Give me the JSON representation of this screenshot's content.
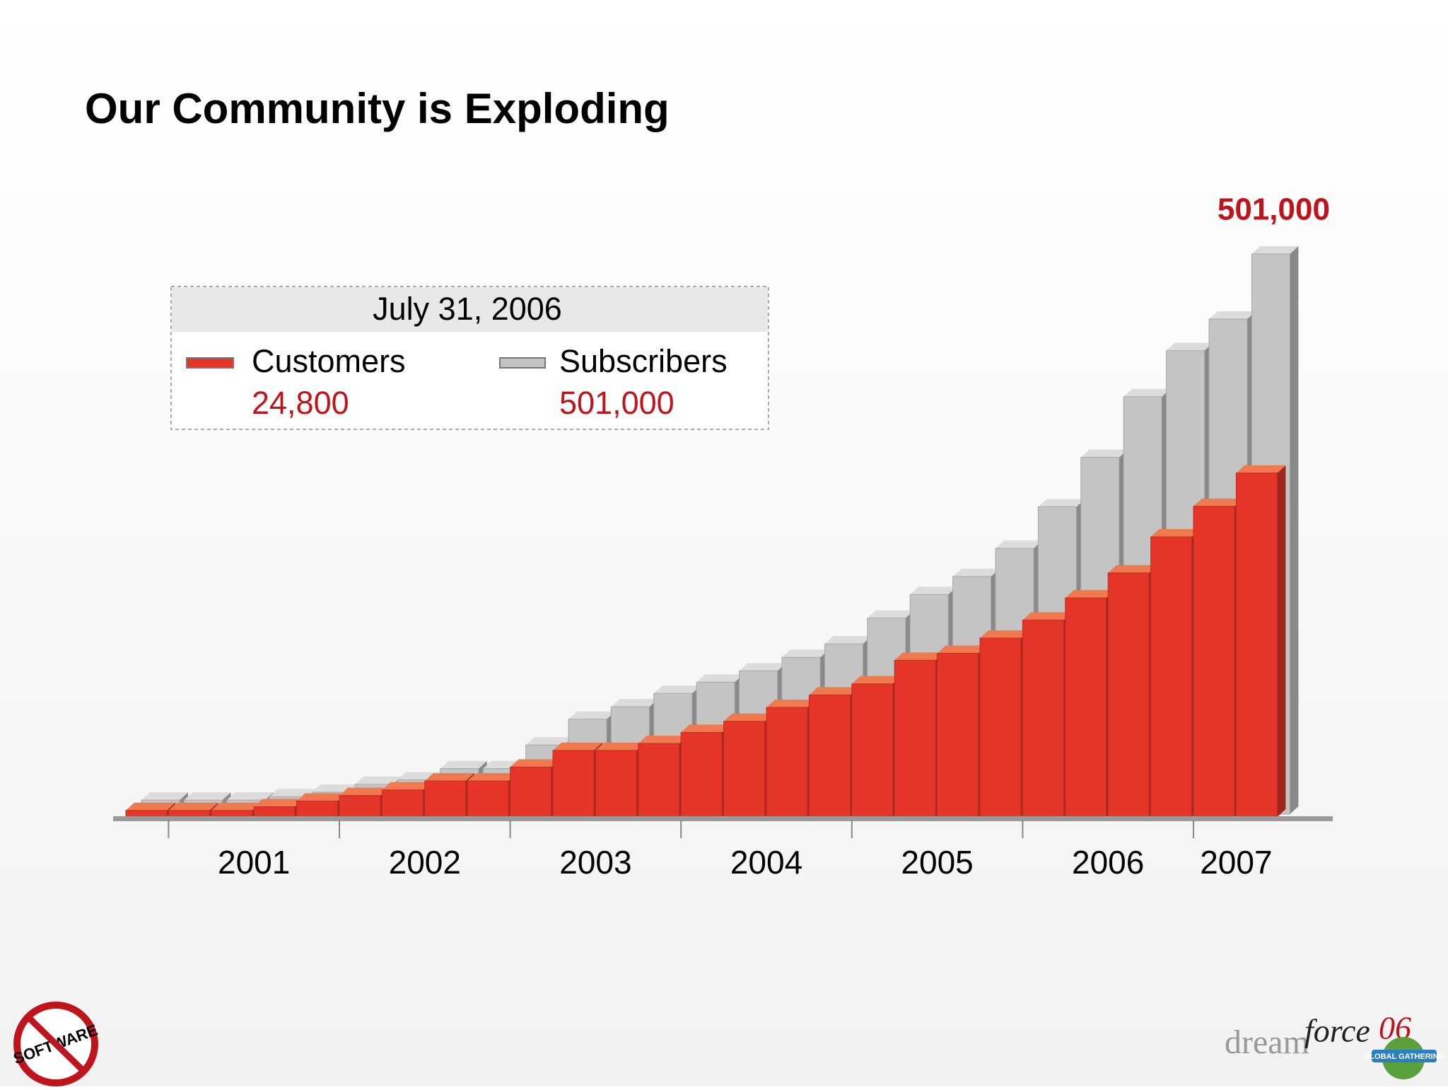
{
  "title": "Our Community is Exploding",
  "chart_data": {
    "type": "bar3d",
    "categories": [
      null,
      "2001",
      null,
      null,
      null,
      "2002",
      null,
      null,
      null,
      "2003",
      null,
      null,
      null,
      "2004",
      null,
      null,
      null,
      "2005",
      null,
      null,
      null,
      "2006",
      null,
      null,
      null,
      "2007",
      null
    ],
    "series": [
      {
        "name": "Subscribers",
        "color": "#c4c4c4",
        "axis": "y",
        "values": [
          15000,
          15000,
          15000,
          18000,
          22000,
          29000,
          33000,
          43000,
          43000,
          64000,
          87000,
          98000,
          110000,
          120000,
          130000,
          142000,
          154000,
          177000,
          198000,
          214000,
          239000,
          276000,
          320000,
          374000,
          415000,
          443000,
          501000
        ],
        "value_labels": [
          null,
          null,
          null,
          null,
          null,
          null,
          null,
          null,
          null,
          null,
          null,
          null,
          null,
          null,
          null,
          null,
          null,
          null,
          null,
          null,
          null,
          null,
          null,
          null,
          null,
          null,
          "501,000"
        ],
        "legend_value_label": "501,000"
      },
      {
        "name": "Customers",
        "color": "#e53528",
        "axis": "y2",
        "values": [
          470,
          470,
          470,
          740,
          1150,
          1550,
          1950,
          2600,
          2600,
          3600,
          4800,
          4800,
          5300,
          6100,
          6900,
          7900,
          8800,
          9600,
          11300,
          11800,
          12900,
          14200,
          15800,
          17600,
          20200,
          22400,
          24800
        ],
        "legend_value_label": "24,800"
      }
    ],
    "ylim": [
      0,
      501000
    ],
    "y2lim": [
      0,
      40600
    ],
    "legend_title": "July 31, 2006"
  },
  "logos": {
    "left": "SOFTWARE",
    "dream": "dream",
    "force": "force",
    "year": "06",
    "tag": "GLOBAL GATHERING"
  }
}
